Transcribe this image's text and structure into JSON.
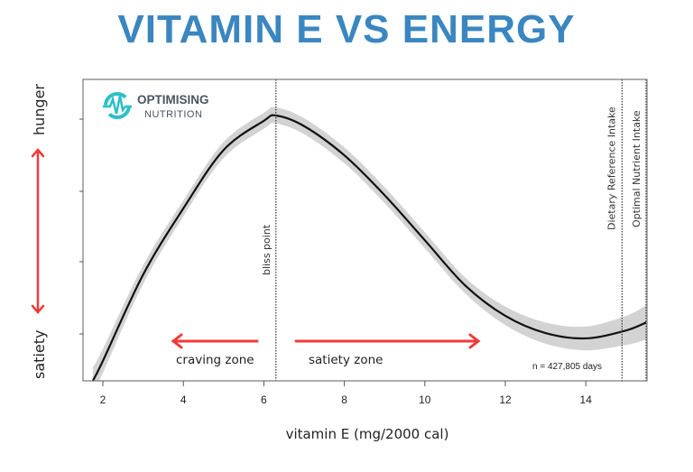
{
  "chart_data": {
    "type": "line",
    "title": "VITAMIN E VS ENERGY",
    "xlabel": "vitamin E (mg/2000 cal)",
    "ylabel_top": "hunger",
    "ylabel_bottom": "satiety",
    "xlim": [
      1.6,
      15.5
    ],
    "ylim": [
      0,
      1
    ],
    "x_ticks": [
      2,
      4,
      6,
      8,
      10,
      12,
      14
    ],
    "grid": false,
    "series": [
      {
        "x": [
          1.75,
          2,
          3,
          4,
          5,
          6,
          6.3,
          7,
          8,
          9,
          10,
          11,
          12,
          13,
          14,
          15,
          15.5
        ],
        "y": [
          0,
          0.075,
          0.4,
          0.65,
          0.87,
          0.98,
          1.0,
          0.96,
          0.85,
          0.7,
          0.53,
          0.36,
          0.245,
          0.18,
          0.16,
          0.19,
          0.22
        ],
        "ci_halfwidth": [
          0.05,
          0.045,
          0.035,
          0.03,
          0.03,
          0.03,
          0.03,
          0.03,
          0.03,
          0.03,
          0.03,
          0.03,
          0.035,
          0.04,
          0.045,
          0.055,
          0.065
        ]
      }
    ],
    "reference_lines": [
      {
        "x": 6.3,
        "label": "bliss point"
      },
      {
        "x": 14.9,
        "label": "Dietary Reference Intake"
      },
      {
        "x": 15.5,
        "label": "Optimal Nutrient Intake"
      }
    ],
    "annotations": {
      "craving_zone": "craving zone",
      "satiety_zone": "satiety zone",
      "sample_size": "n = 427,805 days"
    }
  },
  "logo": {
    "line1": "OPTIMISING",
    "line2": "NUTRITION"
  },
  "colors": {
    "title": "#3a86c0",
    "arrow": "#f03a3a",
    "curve": "#111111",
    "band": "#d3d3d3",
    "logo": "#2cc0c6",
    "logo_text": "#4a5560"
  }
}
